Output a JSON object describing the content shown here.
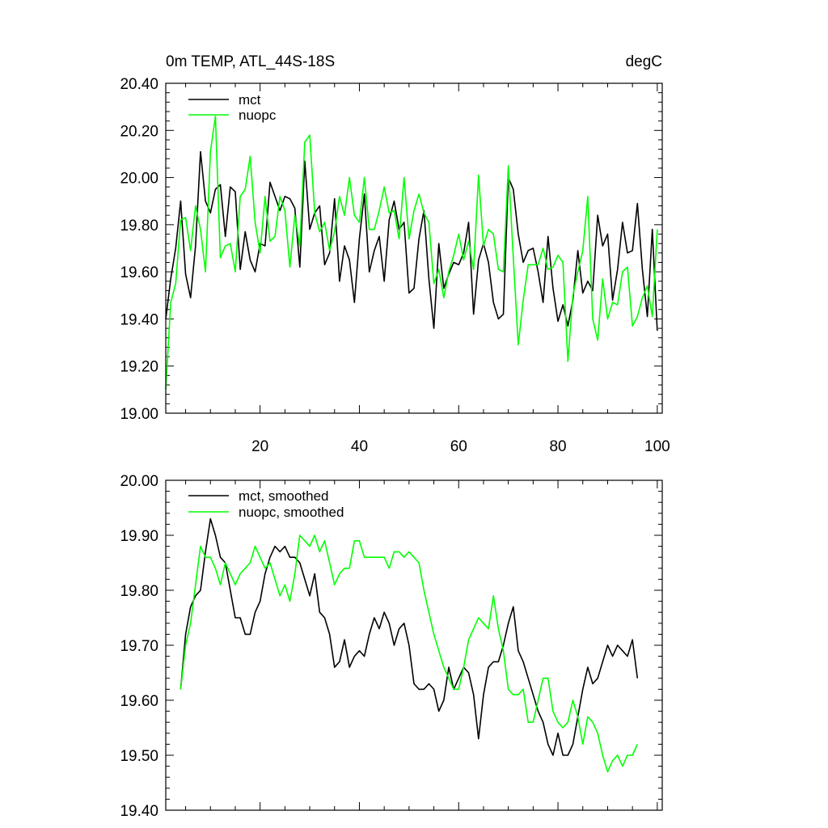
{
  "chart_data": [
    {
      "type": "line",
      "title": "0m TEMP, ATL_44S-18S",
      "units": "degC",
      "xlim": [
        1,
        101
      ],
      "ylim": [
        19.0,
        20.4
      ],
      "xticks": [
        20,
        40,
        60,
        80,
        100
      ],
      "yticks": [
        19.0,
        19.2,
        19.4,
        19.6,
        19.8,
        20.0,
        20.2,
        20.4
      ],
      "ytick_labels": [
        "19.00",
        "19.20",
        "19.40",
        "19.60",
        "19.80",
        "20.00",
        "20.20",
        "20.40"
      ],
      "legend": "top-left",
      "series": [
        {
          "name": "mct",
          "color": "#000000",
          "x_start": 1,
          "values": [
            19.4,
            19.57,
            19.7,
            19.9,
            19.59,
            19.49,
            19.71,
            20.11,
            19.9,
            19.85,
            19.95,
            19.97,
            19.75,
            19.96,
            19.94,
            19.61,
            19.77,
            19.65,
            19.6,
            19.72,
            19.71,
            19.98,
            19.92,
            19.86,
            19.92,
            19.91,
            19.87,
            19.62,
            20.07,
            19.78,
            19.85,
            19.88,
            19.63,
            19.68,
            19.91,
            19.56,
            19.71,
            19.65,
            19.47,
            19.74,
            19.93,
            19.6,
            19.69,
            19.75,
            19.56,
            19.82,
            19.9,
            19.78,
            19.81,
            19.51,
            19.53,
            19.74,
            19.86,
            19.57,
            19.36,
            19.72,
            19.53,
            19.59,
            19.64,
            19.63,
            19.68,
            19.81,
            19.42,
            19.65,
            19.72,
            19.64,
            19.47,
            19.4,
            19.42,
            20.0,
            19.95,
            19.76,
            19.64,
            19.69,
            19.7,
            19.6,
            19.47,
            19.75,
            19.53,
            19.39,
            19.46,
            19.37,
            19.48,
            19.69,
            19.51,
            19.56,
            19.52,
            19.84,
            19.71,
            19.76,
            19.48,
            19.61,
            19.81,
            19.68,
            19.69,
            19.89,
            19.61,
            19.41,
            19.78,
            19.35
          ]
        },
        {
          "name": "nuopc",
          "color": "#00ff00",
          "x_start": 1,
          "values": [
            19.1,
            19.47,
            19.55,
            19.82,
            19.83,
            19.69,
            19.88,
            19.78,
            19.6,
            20.11,
            20.26,
            19.66,
            19.71,
            19.72,
            19.6,
            19.92,
            19.95,
            20.09,
            19.81,
            19.68,
            19.92,
            19.73,
            19.75,
            19.92,
            19.86,
            19.62,
            19.84,
            19.71,
            20.15,
            20.18,
            19.85,
            19.77,
            19.81,
            19.69,
            19.77,
            19.92,
            19.84,
            20.0,
            19.84,
            19.81,
            20.0,
            19.78,
            19.78,
            19.86,
            19.96,
            19.85,
            19.86,
            19.74,
            20.0,
            19.74,
            19.86,
            19.93,
            19.85,
            19.81,
            19.55,
            19.61,
            19.49,
            19.6,
            19.67,
            19.76,
            19.65,
            19.73,
            19.61,
            20.01,
            19.71,
            19.78,
            19.76,
            19.61,
            19.6,
            20.05,
            19.66,
            19.29,
            19.48,
            19.63,
            19.63,
            19.63,
            19.7,
            19.61,
            19.62,
            19.67,
            19.64,
            19.22,
            19.5,
            19.6,
            19.69,
            19.92,
            19.4,
            19.31,
            19.57,
            19.4,
            19.47,
            19.46,
            19.6,
            19.62,
            19.37,
            19.41,
            19.49,
            19.54,
            19.41,
            19.78
          ]
        }
      ]
    },
    {
      "type": "line",
      "title": "",
      "xlim": [
        1,
        101
      ],
      "ylim": [
        19.4,
        20.0
      ],
      "xticks": [
        20,
        40,
        60,
        80,
        100
      ],
      "yticks": [
        19.4,
        19.5,
        19.6,
        19.7,
        19.8,
        19.9,
        20.0
      ],
      "ytick_labels": [
        "19.40",
        "19.50",
        "19.60",
        "19.70",
        "19.80",
        "19.90",
        "20.00"
      ],
      "legend": "top-left",
      "series": [
        {
          "name": "mct, smoothed",
          "color": "#000000",
          "x_start": 4,
          "values": [
            19.62,
            19.72,
            19.77,
            19.79,
            19.8,
            19.87,
            19.93,
            19.9,
            19.86,
            19.85,
            19.8,
            19.75,
            19.75,
            19.72,
            19.72,
            19.76,
            19.78,
            19.83,
            19.86,
            19.88,
            19.87,
            19.88,
            19.86,
            19.86,
            19.85,
            19.82,
            19.79,
            19.83,
            19.76,
            19.75,
            19.72,
            19.66,
            19.67,
            19.71,
            19.66,
            19.68,
            19.69,
            19.68,
            19.72,
            19.75,
            19.73,
            19.76,
            19.74,
            19.7,
            19.73,
            19.74,
            19.7,
            19.63,
            19.62,
            19.62,
            19.63,
            19.62,
            19.58,
            19.6,
            19.66,
            19.62,
            19.64,
            19.66,
            19.65,
            19.61,
            19.53,
            19.61,
            19.66,
            19.67,
            19.67,
            19.7,
            19.74,
            19.77,
            19.69,
            19.67,
            19.64,
            19.61,
            19.58,
            19.56,
            19.52,
            19.5,
            19.54,
            19.5,
            19.5,
            19.52,
            19.57,
            19.62,
            19.66,
            19.63,
            19.64,
            19.67,
            19.7,
            19.68,
            19.7,
            19.69,
            19.68,
            19.71,
            19.64
          ]
        },
        {
          "name": "nuopc, smoothed",
          "color": "#00ff00",
          "x_start": 4,
          "values": [
            19.62,
            19.7,
            19.74,
            19.81,
            19.88,
            19.86,
            19.86,
            19.84,
            19.81,
            19.85,
            19.83,
            19.81,
            19.83,
            19.84,
            19.85,
            19.88,
            19.86,
            19.84,
            19.85,
            19.82,
            19.79,
            19.81,
            19.78,
            19.83,
            19.9,
            19.89,
            19.88,
            19.9,
            19.87,
            19.89,
            19.85,
            19.81,
            19.83,
            19.84,
            19.84,
            19.89,
            19.89,
            19.86,
            19.86,
            19.86,
            19.86,
            19.86,
            19.84,
            19.87,
            19.87,
            19.86,
            19.87,
            19.86,
            19.85,
            19.8,
            19.76,
            19.72,
            19.69,
            19.66,
            19.64,
            19.62,
            19.62,
            19.66,
            19.71,
            19.73,
            19.75,
            19.74,
            19.73,
            19.79,
            19.73,
            19.69,
            19.62,
            19.61,
            19.61,
            19.62,
            19.56,
            19.56,
            19.6,
            19.64,
            19.64,
            19.58,
            19.56,
            19.55,
            19.56,
            19.6,
            19.57,
            19.52,
            19.57,
            19.56,
            19.54,
            19.5,
            19.47,
            19.49,
            19.5,
            19.48,
            19.5,
            19.5,
            19.52
          ]
        }
      ]
    }
  ]
}
